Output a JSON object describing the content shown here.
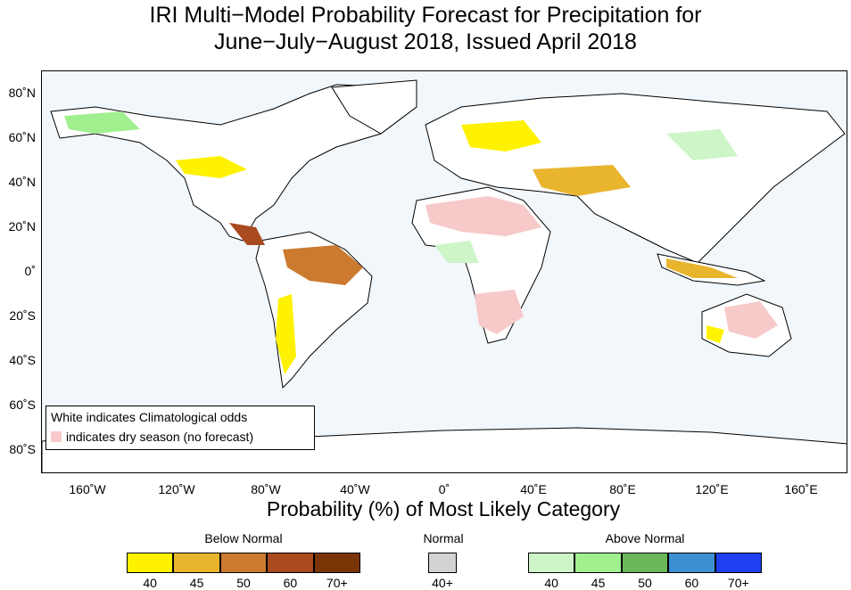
{
  "title_line1": "IRI Multi−Model Probability Forecast for Precipitation for",
  "title_line2": "June−July−August 2018, Issued April 2018",
  "x_axis_label": "Probability (%) of Most Likely Category",
  "lat_ticks": [
    "80˚N",
    "60˚N",
    "40˚N",
    "20˚N",
    "0˚",
    "20˚S",
    "40˚S",
    "60˚S",
    "80˚S"
  ],
  "lon_ticks": [
    "160˚W",
    "120˚W",
    "80˚W",
    "40˚W",
    "0˚",
    "40˚E",
    "80˚E",
    "120˚E",
    "160˚E"
  ],
  "note_line1": "White indicates Climatological odds",
  "note_line2": "indicates dry season (no forecast)",
  "legend": {
    "below": {
      "title": "Below Normal",
      "items": [
        {
          "label": "40",
          "color": "#fff200"
        },
        {
          "label": "45",
          "color": "#e8b52c"
        },
        {
          "label": "50",
          "color": "#cc7a30"
        },
        {
          "label": "60",
          "color": "#a94a1f"
        },
        {
          "label": "70+",
          "color": "#7a3406"
        }
      ]
    },
    "normal": {
      "title": "Normal",
      "items": [
        {
          "label": "40+",
          "color": "#d3d3d3"
        }
      ]
    },
    "above": {
      "title": "Above Normal",
      "items": [
        {
          "label": "40",
          "color": "#cdf5c8"
        },
        {
          "label": "45",
          "color": "#a0f08f"
        },
        {
          "label": "50",
          "color": "#6ab85a"
        },
        {
          "label": "60",
          "color": "#3c8fd2"
        },
        {
          "label": "70+",
          "color": "#1e40f0"
        }
      ]
    }
  },
  "colors": {
    "ocean": "#f1f7fb",
    "land": "#ffffff",
    "dry_season": "#f7c9c9",
    "coast": "#000000"
  }
}
